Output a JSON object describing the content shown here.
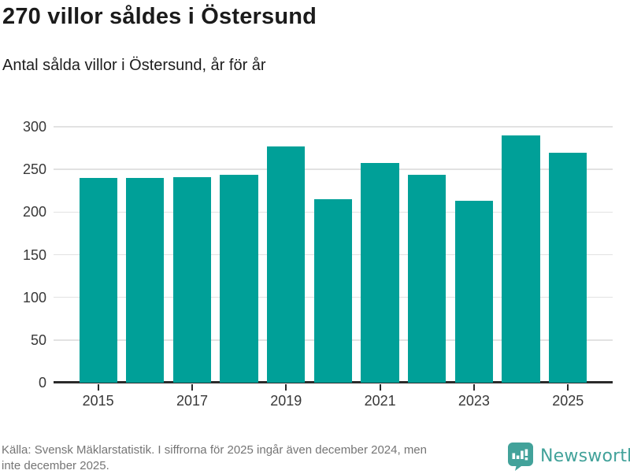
{
  "chart_data": {
    "type": "bar",
    "title": "270 villor såldes i Östersund",
    "subtitle": "Antal sålda villor i Östersund, år för år",
    "categories": [
      "2015",
      "2016",
      "2017",
      "2018",
      "2019",
      "2020",
      "2021",
      "2022",
      "2023",
      "2024",
      "2025"
    ],
    "values": [
      240,
      240,
      241,
      244,
      277,
      215,
      258,
      244,
      213,
      290,
      270
    ],
    "xlabel": "",
    "ylabel": "",
    "ylim": [
      0,
      300
    ],
    "y_ticks": [
      0,
      50,
      100,
      150,
      200,
      250,
      300
    ],
    "x_tick_labels_shown": [
      "2015",
      "2017",
      "2019",
      "2021",
      "2023",
      "2025"
    ],
    "grid": true,
    "legend": false,
    "bar_color": "#00A098",
    "axis_color": "#2b2b2b",
    "grid_color": "#e2e2e2"
  },
  "footer": {
    "source_lines": [
      "Källa: Svensk Mäklarstatistik. I siffrorna för 2025 ingår även december 2024, men",
      "inte december 2025."
    ],
    "brand": {
      "name": "Newsworthy",
      "color": "#42a29a",
      "icon": "newsworthy-bar-chart-speech-bubble-icon"
    }
  }
}
